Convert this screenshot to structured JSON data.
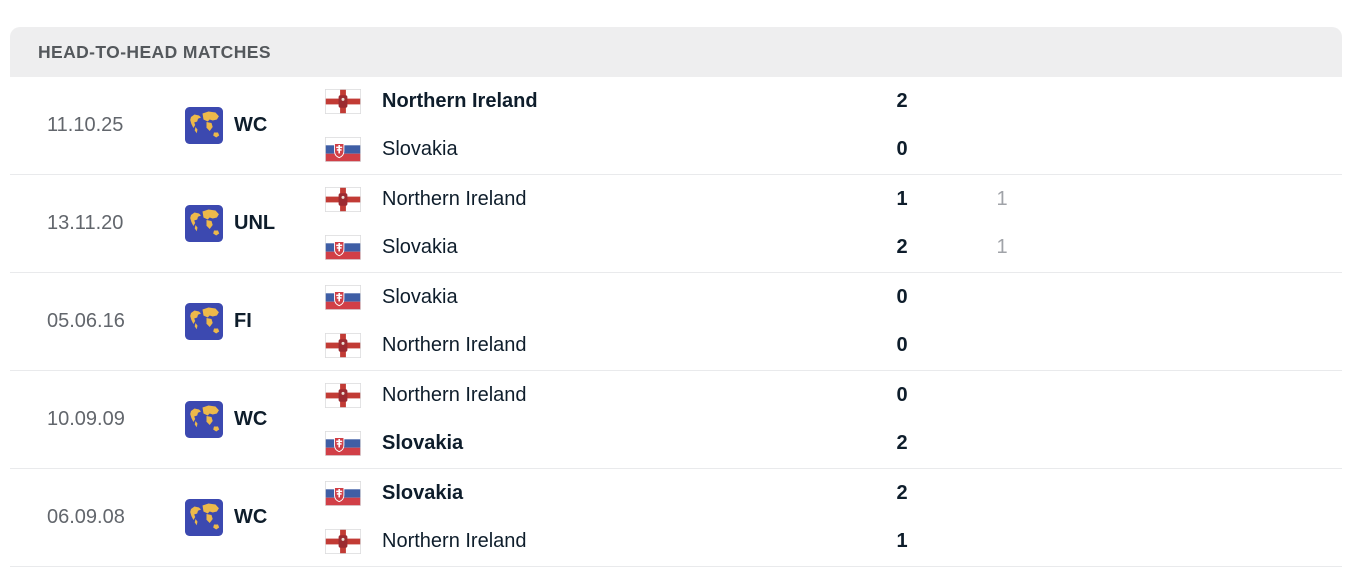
{
  "header": {
    "title": "HEAD-TO-HEAD MATCHES"
  },
  "icons": {
    "competition_icon": "world-icon"
  },
  "colors": {
    "header_bg": "#eeeeef",
    "header_text": "#54585c",
    "row_text_dark": "#0e1d2b",
    "date_text": "#62666c",
    "extra_score_text": "#a0a3a8",
    "separator": "#e9eaec",
    "competition_icon_bg": "#3c49b0",
    "competition_icon_map": "#edb94a",
    "flag_red": "#c23b35",
    "flag_blue": "#3f5ea5"
  },
  "matches": [
    {
      "date": "11.10.25",
      "competition": "WC",
      "home": {
        "team": "Northern Ireland",
        "flag": "northern-ireland",
        "score": "2",
        "extra": "",
        "bold": true
      },
      "away": {
        "team": "Slovakia",
        "flag": "slovakia",
        "score": "0",
        "extra": "",
        "bold": false
      }
    },
    {
      "date": "13.11.20",
      "competition": "UNL",
      "home": {
        "team": "Northern Ireland",
        "flag": "northern-ireland",
        "score": "1",
        "extra": "1",
        "bold": false
      },
      "away": {
        "team": "Slovakia",
        "flag": "slovakia",
        "score": "2",
        "extra": "1",
        "bold": false
      }
    },
    {
      "date": "05.06.16",
      "competition": "FI",
      "home": {
        "team": "Slovakia",
        "flag": "slovakia",
        "score": "0",
        "extra": "",
        "bold": false
      },
      "away": {
        "team": "Northern Ireland",
        "flag": "northern-ireland",
        "score": "0",
        "extra": "",
        "bold": false
      }
    },
    {
      "date": "10.09.09",
      "competition": "WC",
      "home": {
        "team": "Northern Ireland",
        "flag": "northern-ireland",
        "score": "0",
        "extra": "",
        "bold": false
      },
      "away": {
        "team": "Slovakia",
        "flag": "slovakia",
        "score": "2",
        "extra": "",
        "bold": true
      }
    },
    {
      "date": "06.09.08",
      "competition": "WC",
      "home": {
        "team": "Slovakia",
        "flag": "slovakia",
        "score": "2",
        "extra": "",
        "bold": true
      },
      "away": {
        "team": "Northern Ireland",
        "flag": "northern-ireland",
        "score": "1",
        "extra": "",
        "bold": false
      }
    }
  ]
}
